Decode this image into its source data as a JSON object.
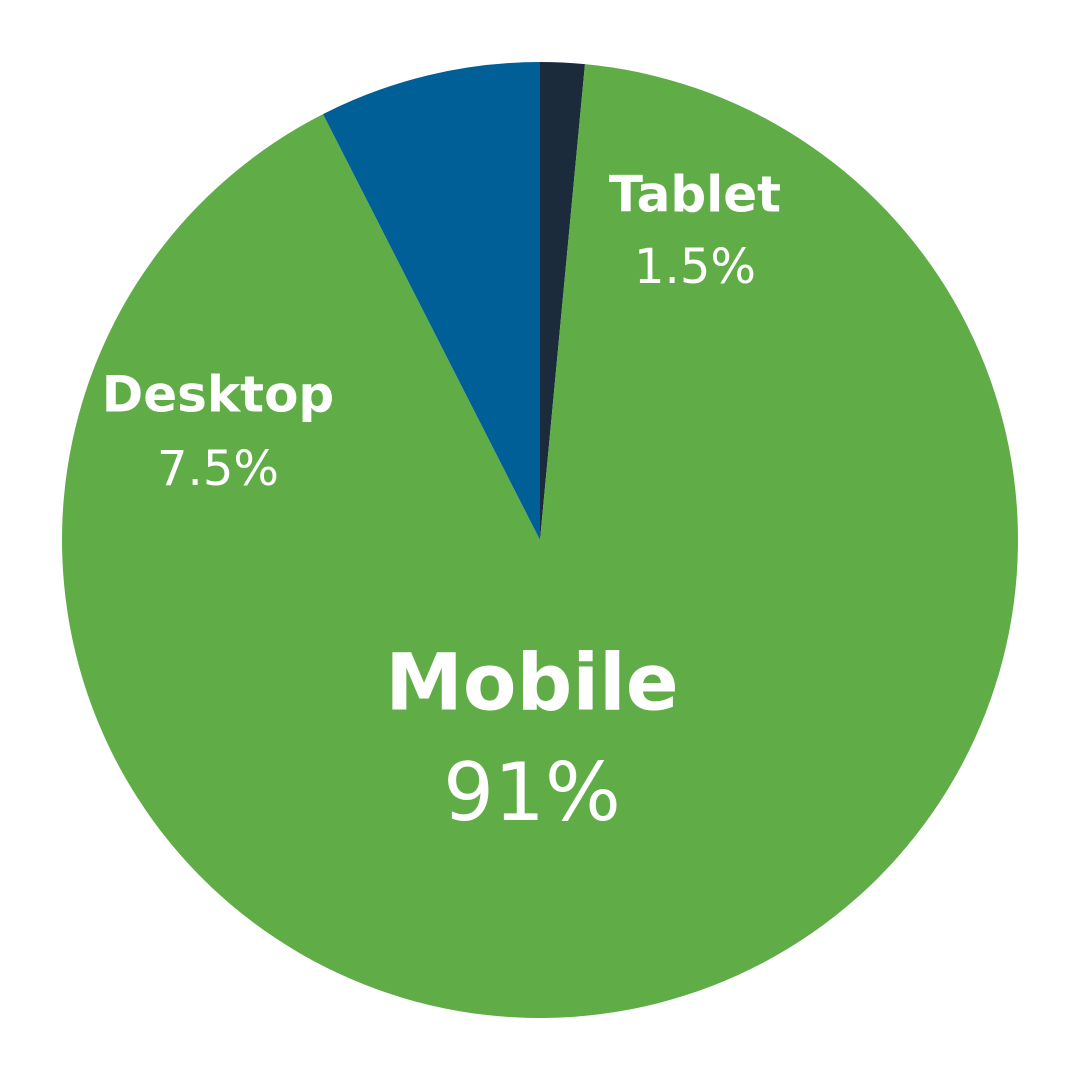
{
  "chart_data": {
    "type": "pie",
    "categories": [
      "Tablet",
      "Mobile",
      "Desktop"
    ],
    "values": [
      1.5,
      91,
      7.5
    ],
    "value_labels": [
      "1.5%",
      "91%",
      "7.5%"
    ],
    "colors": [
      "#1c2b3c",
      "#60ad48",
      "#005f96"
    ]
  }
}
